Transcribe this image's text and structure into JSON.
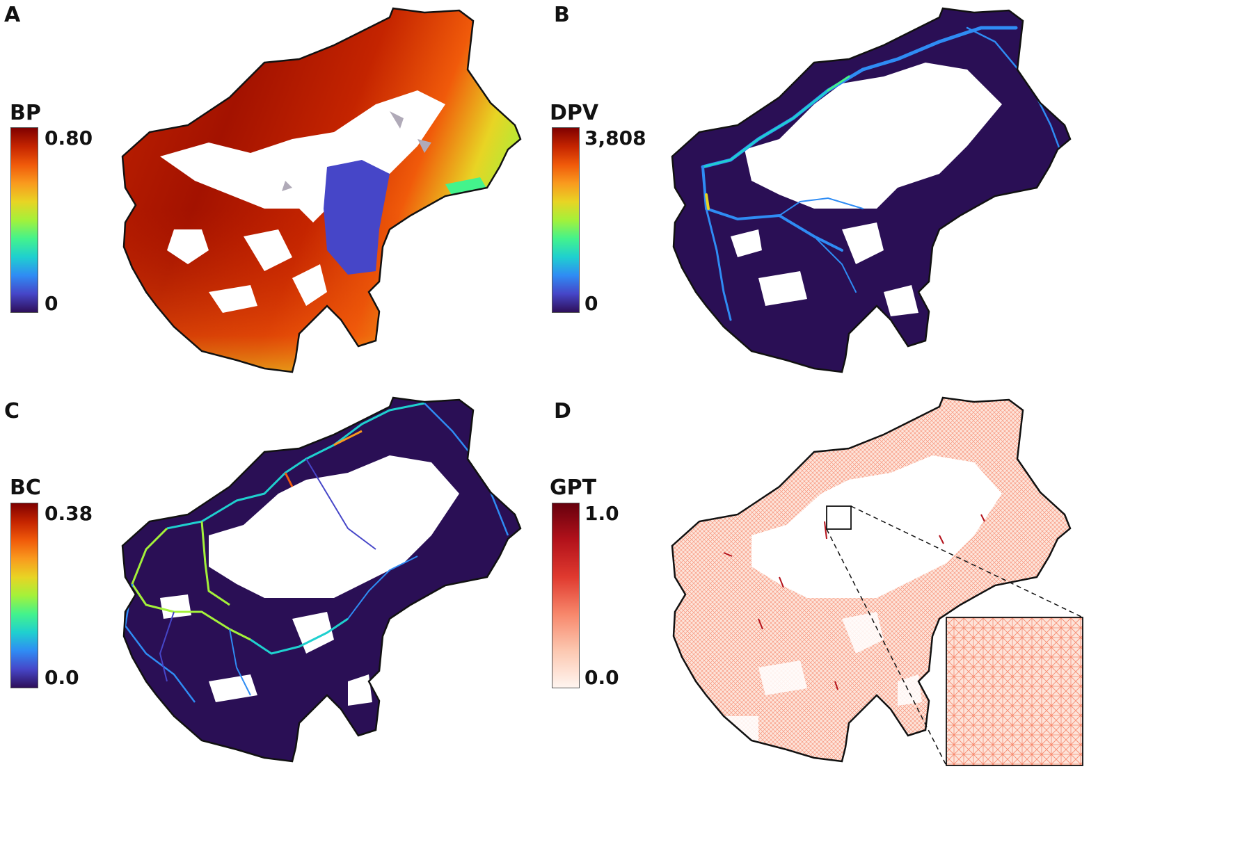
{
  "panels": [
    {
      "letter": "A",
      "title": "BP",
      "max_label": "0.80",
      "min_label": "0"
    },
    {
      "letter": "B",
      "title": "DPV",
      "max_label": "3,808",
      "min_label": "0"
    },
    {
      "letter": "C",
      "title": "BC",
      "max_label": "0.38",
      "min_label": "0.0"
    },
    {
      "letter": "D",
      "title": "GPT",
      "max_label": "1.0",
      "min_label": "0.0"
    }
  ],
  "colors": {
    "turbo": [
      "#7f0000",
      "#c42400",
      "#f05a0a",
      "#f99a1e",
      "#e8d424",
      "#a4f13a",
      "#44f38c",
      "#1fd0cf",
      "#2f8cf4",
      "#4646c8",
      "#2e0f5a"
    ],
    "reds": [
      "#67000d",
      "#b3121b",
      "#e03a2f",
      "#f7876b",
      "#fcc8b1",
      "#fff5f0"
    ],
    "outline": "#111111",
    "navy": "#2a0f55",
    "nodata_gray": "#b0aab8"
  }
}
